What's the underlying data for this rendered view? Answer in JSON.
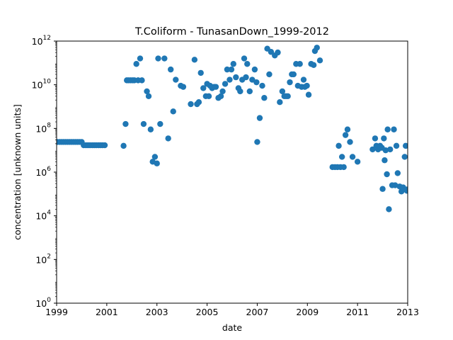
{
  "chart_data": {
    "type": "scatter",
    "title": "T.Coliform - TunasanDown_1999-2012",
    "xlabel": "date",
    "ylabel": "concentration [unknown units]",
    "xlim": [
      1999,
      2013
    ],
    "ylim": [
      1,
      1000000000000
    ],
    "y_scale": "log",
    "grid": false,
    "legend": "none",
    "x_ticks": [
      {
        "value": 1999,
        "label": "1999"
      },
      {
        "value": 2001,
        "label": "2001"
      },
      {
        "value": 2003,
        "label": "2003"
      },
      {
        "value": 2005,
        "label": "2005"
      },
      {
        "value": 2007,
        "label": "2007"
      },
      {
        "value": 2009,
        "label": "2009"
      },
      {
        "value": 2011,
        "label": "2011"
      },
      {
        "value": 2013,
        "label": "2013"
      }
    ],
    "y_ticks": [
      {
        "value": 1,
        "base": "10",
        "exp": "0"
      },
      {
        "value": 100,
        "base": "10",
        "exp": "2"
      },
      {
        "value": 10000,
        "base": "10",
        "exp": "4"
      },
      {
        "value": 1000000,
        "base": "10",
        "exp": "6"
      },
      {
        "value": 100000000,
        "base": "10",
        "exp": "8"
      },
      {
        "value": 10000000000,
        "base": "10",
        "exp": "10"
      },
      {
        "value": 1000000000000,
        "base": "10",
        "exp": "12"
      }
    ],
    "marker_color": "#1f77b4",
    "points": [
      [
        1999.03,
        24000000
      ],
      [
        1999.12,
        24000000
      ],
      [
        1999.2,
        24000000
      ],
      [
        1999.28,
        24000000
      ],
      [
        1999.36,
        24000000
      ],
      [
        1999.44,
        24000000
      ],
      [
        1999.52,
        24000000
      ],
      [
        1999.6,
        24000000
      ],
      [
        1999.68,
        24000000
      ],
      [
        1999.76,
        24000000
      ],
      [
        1999.84,
        24000000
      ],
      [
        1999.92,
        24000000
      ],
      [
        2000.0,
        24000000
      ],
      [
        2000.08,
        17000000
      ],
      [
        2000.17,
        17000000
      ],
      [
        2000.25,
        17000000
      ],
      [
        2000.33,
        17000000
      ],
      [
        2000.42,
        17000000
      ],
      [
        2000.5,
        17000000
      ],
      [
        2000.58,
        17000000
      ],
      [
        2000.67,
        17000000
      ],
      [
        2000.75,
        17000000
      ],
      [
        2000.83,
        17000000
      ],
      [
        2000.92,
        17000000
      ],
      [
        2001.67,
        16000000
      ],
      [
        2001.75,
        160000000
      ],
      [
        2001.8,
        16000000000
      ],
      [
        2001.87,
        16000000000
      ],
      [
        2001.95,
        16000000000
      ],
      [
        2002.03,
        16000000000
      ],
      [
        2002.1,
        16000000000
      ],
      [
        2002.18,
        90000000000
      ],
      [
        2002.25,
        16000000000
      ],
      [
        2002.33,
        160000000000
      ],
      [
        2002.4,
        16000000000
      ],
      [
        2002.47,
        160000000
      ],
      [
        2002.6,
        5000000000
      ],
      [
        2002.67,
        3000000000
      ],
      [
        2002.75,
        90000000
      ],
      [
        2002.83,
        3000000
      ],
      [
        2002.92,
        5000000
      ],
      [
        2003.0,
        2500000
      ],
      [
        2003.05,
        160000000000
      ],
      [
        2003.13,
        160000000
      ],
      [
        2003.3,
        160000000000
      ],
      [
        2003.45,
        35000000
      ],
      [
        2003.55,
        50000000000
      ],
      [
        2003.65,
        600000000
      ],
      [
        2003.75,
        17000000000
      ],
      [
        2003.95,
        9000000000
      ],
      [
        2004.05,
        8000000000
      ],
      [
        2004.35,
        1300000000
      ],
      [
        2004.5,
        140000000000
      ],
      [
        2004.6,
        1300000000
      ],
      [
        2004.67,
        1600000000
      ],
      [
        2004.75,
        35000000000
      ],
      [
        2004.85,
        7000000000
      ],
      [
        2004.95,
        3000000000
      ],
      [
        2005.0,
        11000000000
      ],
      [
        2005.07,
        3000000000
      ],
      [
        2005.12,
        9000000000
      ],
      [
        2005.2,
        7000000000
      ],
      [
        2005.28,
        8000000000
      ],
      [
        2005.35,
        8000000000
      ],
      [
        2005.45,
        2500000000
      ],
      [
        2005.55,
        3000000000
      ],
      [
        2005.62,
        5000000000
      ],
      [
        2005.72,
        11000000000
      ],
      [
        2005.8,
        50000000000
      ],
      [
        2005.9,
        17000000000
      ],
      [
        2005.97,
        50000000000
      ],
      [
        2006.05,
        90000000000
      ],
      [
        2006.15,
        22000000000
      ],
      [
        2006.25,
        7000000000
      ],
      [
        2006.32,
        5000000000
      ],
      [
        2006.4,
        17000000000
      ],
      [
        2006.48,
        160000000000
      ],
      [
        2006.55,
        22000000000
      ],
      [
        2006.6,
        90000000000
      ],
      [
        2006.7,
        5000000000
      ],
      [
        2006.8,
        17000000000
      ],
      [
        2006.9,
        50000000000
      ],
      [
        2006.97,
        13000000000
      ],
      [
        2007.0,
        24000000
      ],
      [
        2007.1,
        300000000
      ],
      [
        2007.2,
        9000000000
      ],
      [
        2007.28,
        2500000000
      ],
      [
        2007.4,
        450000000000
      ],
      [
        2007.48,
        30000000000
      ],
      [
        2007.55,
        320000000000
      ],
      [
        2007.7,
        220000000000
      ],
      [
        2007.82,
        300000000000
      ],
      [
        2007.9,
        1600000000
      ],
      [
        2008.0,
        5000000000
      ],
      [
        2008.08,
        3000000000
      ],
      [
        2008.15,
        3000000000
      ],
      [
        2008.22,
        3000000000
      ],
      [
        2008.3,
        13000000000
      ],
      [
        2008.38,
        30000000000
      ],
      [
        2008.45,
        30000000000
      ],
      [
        2008.55,
        90000000000
      ],
      [
        2008.62,
        9000000000
      ],
      [
        2008.7,
        90000000000
      ],
      [
        2008.77,
        8000000000
      ],
      [
        2008.85,
        17000000000
      ],
      [
        2008.9,
        8000000000
      ],
      [
        2008.98,
        9000000000
      ],
      [
        2009.05,
        3500000000
      ],
      [
        2009.15,
        90000000000
      ],
      [
        2009.25,
        80000000000
      ],
      [
        2009.3,
        350000000000
      ],
      [
        2009.38,
        500000000000
      ],
      [
        2009.5,
        130000000000
      ],
      [
        2010.0,
        1700000
      ],
      [
        2010.1,
        1700000
      ],
      [
        2010.2,
        1700000
      ],
      [
        2010.25,
        16000000
      ],
      [
        2010.32,
        1700000
      ],
      [
        2010.38,
        5000000
      ],
      [
        2010.45,
        1700000
      ],
      [
        2010.52,
        50000000
      ],
      [
        2010.6,
        90000000
      ],
      [
        2010.7,
        24000000
      ],
      [
        2010.8,
        5000000
      ],
      [
        2011.0,
        3000000
      ],
      [
        2011.6,
        11000000
      ],
      [
        2011.7,
        35000000
      ],
      [
        2011.75,
        16000000
      ],
      [
        2011.82,
        11000000
      ],
      [
        2011.9,
        16000000
      ],
      [
        2011.97,
        13000000
      ],
      [
        2012.0,
        170000
      ],
      [
        2012.05,
        35000000
      ],
      [
        2012.08,
        3500000
      ],
      [
        2012.12,
        10000000
      ],
      [
        2012.17,
        800000
      ],
      [
        2012.2,
        90000000
      ],
      [
        2012.25,
        20000
      ],
      [
        2012.3,
        11000000
      ],
      [
        2012.38,
        250000
      ],
      [
        2012.45,
        90000000
      ],
      [
        2012.5,
        250000
      ],
      [
        2012.55,
        16000000
      ],
      [
        2012.6,
        900000
      ],
      [
        2012.68,
        220000
      ],
      [
        2012.75,
        130000
      ],
      [
        2012.82,
        200000
      ],
      [
        2012.88,
        5000000
      ],
      [
        2012.92,
        16000000
      ],
      [
        2012.97,
        140000
      ],
      [
        2012.97,
        160000
      ]
    ]
  }
}
